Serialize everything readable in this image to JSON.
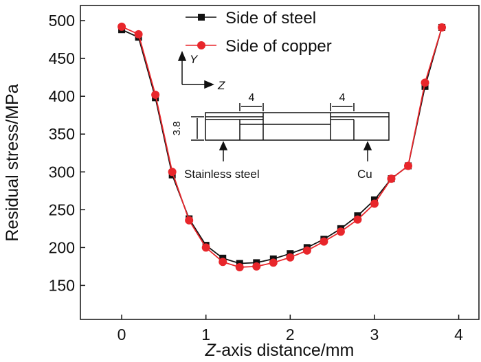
{
  "chart_data": {
    "type": "line",
    "title": "",
    "xlabel_italic": "Z",
    "xlabel_rest": "-axis distance/mm",
    "ylabel": "Residual stress/MPa",
    "xlim": [
      -0.49,
      4.24
    ],
    "ylim": [
      105,
      520
    ],
    "xticks": [
      0,
      1,
      2,
      3,
      4
    ],
    "yticks": [
      150,
      200,
      250,
      300,
      350,
      400,
      450,
      500
    ],
    "grid": false,
    "legend_position": "top-center",
    "x": [
      0,
      0.2,
      0.4,
      0.6,
      0.8,
      1.0,
      1.2,
      1.4,
      1.6,
      1.8,
      2.0,
      2.2,
      2.4,
      2.6,
      2.8,
      3.0,
      3.2,
      3.4,
      3.6,
      3.8
    ],
    "series": [
      {
        "name": "Side of steel",
        "color": "#111111",
        "marker": "square",
        "values": [
          488,
          478,
          398,
          296,
          238,
          203,
          186,
          179,
          180,
          185,
          192,
          200,
          211,
          225,
          242,
          263,
          291,
          308,
          413,
          491
        ]
      },
      {
        "name": "Side of copper",
        "color": "#e8262b",
        "marker": "circle",
        "values": [
          492,
          482,
          402,
          300,
          236,
          200,
          181,
          174,
          175,
          180,
          187,
          196,
          208,
          221,
          237,
          258,
          291,
          308,
          418,
          491
        ]
      }
    ],
    "inset": {
      "axis_y": "Y",
      "axis_z": "Z",
      "dim_left": "4",
      "dim_right": "4",
      "dim_height": "3.8",
      "label_steel": "Stainless steel",
      "label_cu": "Cu"
    }
  }
}
